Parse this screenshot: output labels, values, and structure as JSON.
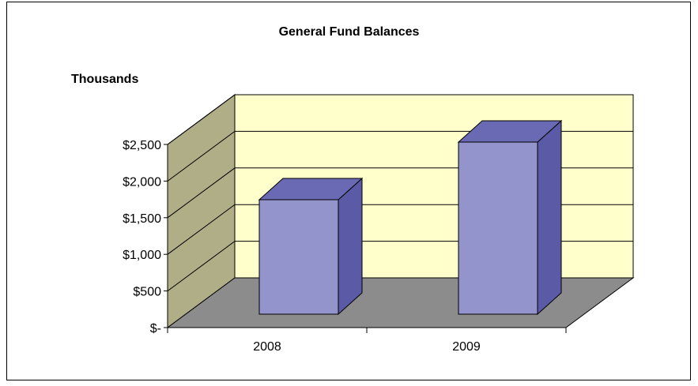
{
  "chart_data": {
    "type": "bar",
    "title": "General Fund Balances",
    "ylabel": "Thousands",
    "xlabel": "",
    "categories": [
      "2008",
      "2009"
    ],
    "values": [
      1650,
      2480
    ],
    "ylim": [
      0,
      2500
    ],
    "y_ticks": [
      {
        "value": 0,
        "label": "$-"
      },
      {
        "value": 500,
        "label": "$500"
      },
      {
        "value": 1000,
        "label": "$1,000"
      },
      {
        "value": 1500,
        "label": "$1,500"
      },
      {
        "value": 2000,
        "label": "$2,000"
      },
      {
        "value": 2500,
        "label": "$2,500"
      }
    ],
    "grid": true,
    "style": "3d-column",
    "colors": {
      "bar_front": "#9494CC",
      "bar_top": "#6A6AB4",
      "bar_side": "#5A5AA6",
      "back_wall": "#FFFFCC",
      "side_wall": "#B0AE86",
      "floor": "#8C8C8C"
    }
  }
}
